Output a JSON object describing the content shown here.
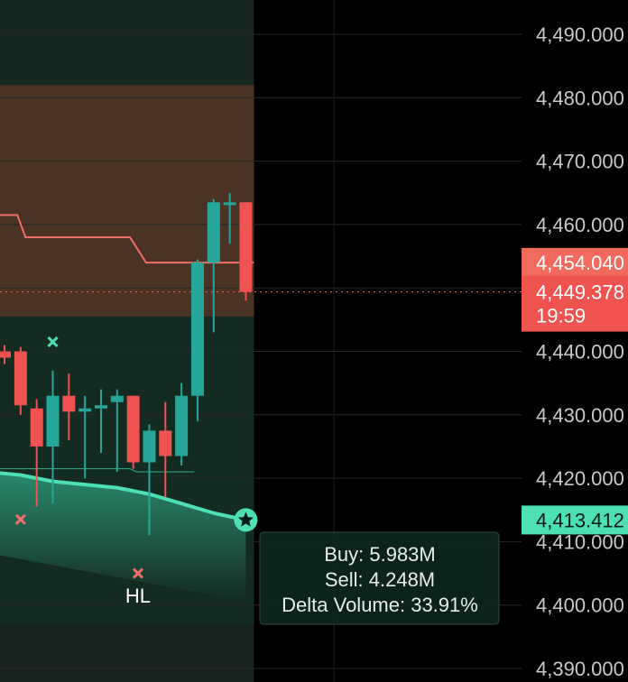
{
  "chart_data": {
    "type": "candlestick",
    "y_ticks": [
      4490,
      4480,
      4470,
      4460,
      4450,
      4440,
      4430,
      4420,
      4410,
      4400,
      4390
    ],
    "y_tick_labels": [
      "4,490.000",
      "4,480.000",
      "4,470.000",
      "4,460.000",
      "4,450.000",
      "4,440.000",
      "4,430.000",
      "4,420.000",
      "4,410.000",
      "4,400.000",
      "4,390.000"
    ],
    "ylim": [
      4387,
      4497
    ],
    "grid": true,
    "candles": [
      {
        "o": 4440.0,
        "h": 4441.0,
        "l": 4438.0,
        "c": 4439.0
      },
      {
        "o": 4440.0,
        "h": 4440.7,
        "l": 4430.0,
        "c": 4431.5
      },
      {
        "o": 4431.0,
        "h": 4432.5,
        "l": 4415.5,
        "c": 4425.0
      },
      {
        "o": 4425.0,
        "h": 4437.0,
        "l": 4416.0,
        "c": 4433.0
      },
      {
        "o": 4433.0,
        "h": 4436.5,
        "l": 4426.0,
        "c": 4430.5
      },
      {
        "o": 4430.5,
        "h": 4433.0,
        "l": 4420.0,
        "c": 4431.0
      },
      {
        "o": 4431.0,
        "h": 4434.0,
        "l": 4424.0,
        "c": 4431.5
      },
      {
        "o": 4432.0,
        "h": 4434.0,
        "l": 4421.0,
        "c": 4433.0
      },
      {
        "o": 4433.0,
        "h": 4433.0,
        "l": 4421.5,
        "c": 4422.5
      },
      {
        "o": 4422.5,
        "h": 4428.5,
        "l": 4411.0,
        "c": 4427.5
      },
      {
        "o": 4427.5,
        "h": 4432.0,
        "l": 4417.0,
        "c": 4423.5
      },
      {
        "o": 4423.5,
        "h": 4435.0,
        "l": 4422.0,
        "c": 4433.0
      },
      {
        "o": 4433.0,
        "h": 4454.5,
        "l": 4429.0,
        "c": 4454.0
      },
      {
        "o": 4454.0,
        "h": 4464.0,
        "l": 4443.0,
        "c": 4463.5
      },
      {
        "o": 4463.5,
        "h": 4465.0,
        "l": 4457.0,
        "c": 4463.5
      },
      {
        "o": 4463.5,
        "h": 4463.5,
        "l": 4448.0,
        "c": 4449.378
      }
    ],
    "colors": {
      "up": "#26a69a",
      "down": "#ef5350",
      "ema_line": "#4de0b5",
      "resistance_line": "#f07066",
      "zone_top": "#4a3324",
      "zone_bottom": "#142b22",
      "current_price_badge": "#ef5350",
      "ema_badge": "#4de0b5"
    },
    "ema_line": [
      [
        -1,
        4421.0
      ],
      [
        1,
        4420.5
      ],
      [
        3,
        4419.5
      ],
      [
        5,
        4419.0
      ],
      [
        7,
        4418.5
      ],
      [
        9,
        4417.5
      ],
      [
        11,
        4416.0
      ],
      [
        13,
        4414.5
      ],
      [
        15,
        4413.412
      ]
    ],
    "resistance_line": [
      [
        -1,
        4461.5
      ],
      [
        0.8,
        4461.5
      ],
      [
        1.3,
        4458.0
      ],
      [
        7.8,
        4458.0
      ],
      [
        8.8,
        4454.0
      ],
      [
        15.5,
        4454.0
      ]
    ],
    "support_line": [
      [
        -1,
        4421.5
      ],
      [
        7.8,
        4421.5
      ],
      [
        8.2,
        4421.0
      ],
      [
        11.8,
        4421.0
      ]
    ],
    "markers": [
      {
        "kind": "x",
        "index": 3,
        "price": 4441.5,
        "color": "#4de0b5"
      },
      {
        "kind": "x",
        "index": 1,
        "price": 4413.5,
        "color": "#f07066"
      },
      {
        "kind": "x",
        "index": 8.3,
        "price": 4405.0,
        "color": "#f07066"
      },
      {
        "kind": "star",
        "index": 15,
        "price": 4413.412,
        "color": "#4de0b5"
      }
    ],
    "annotations": [
      {
        "text": "HL",
        "index": 8.3,
        "price": 4401.5
      }
    ],
    "price_labels": {
      "level": {
        "value": 4454.04,
        "text": "4,454.040"
      },
      "current": {
        "value": 4449.378,
        "text": "4,449.378",
        "countdown": "19:59"
      },
      "ema": {
        "value": 4413.412,
        "text": "4,413.412"
      }
    },
    "tooltip": {
      "buy": "Buy: 5.983M",
      "sell": "Sell: 4.248M",
      "delta": "Delta Volume: 33.91%"
    }
  }
}
